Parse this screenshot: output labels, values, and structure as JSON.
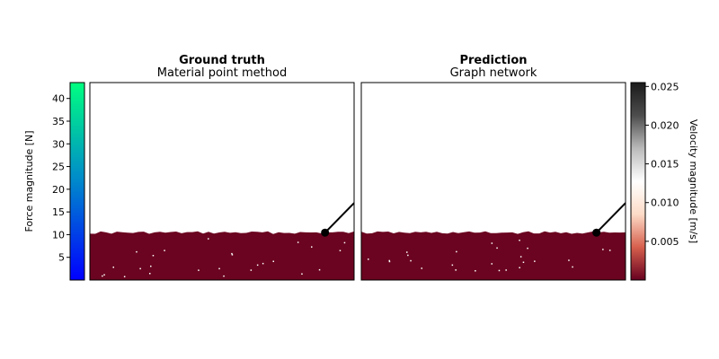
{
  "chart_data": [
    {
      "type": "scatter",
      "title": "Ground truth",
      "subtitle": "Material point method",
      "material_color": "#6b0420",
      "material_surface_level": 0.24,
      "probe": {
        "x": 0.89,
        "y": 0.24,
        "color": "#000000"
      },
      "rod": {
        "x1": 0.89,
        "y1": 0.24,
        "x2": 1.0,
        "y2": 0.39
      }
    },
    {
      "type": "scatter",
      "title": "Prediction",
      "subtitle": "Graph network",
      "material_color": "#6b0420",
      "material_surface_level": 0.24,
      "probe": {
        "x": 0.89,
        "y": 0.24,
        "color": "#000000"
      },
      "rod": {
        "x1": 0.89,
        "y1": 0.24,
        "x2": 1.0,
        "y2": 0.39
      }
    }
  ],
  "colorbars": {
    "force": {
      "label": "Force magnitude [N]",
      "range": [
        0,
        43.5
      ],
      "ticks": [
        5,
        10,
        15,
        20,
        25,
        30,
        35,
        40
      ],
      "tick_labels": [
        "5",
        "10",
        "15",
        "20",
        "25",
        "30",
        "35",
        "40"
      ],
      "colors": [
        "#0000ff",
        "#0088cc",
        "#00ff80"
      ]
    },
    "velocity": {
      "label": "Velocity magnitude [m/s]",
      "range": [
        0,
        0.0255
      ],
      "ticks": [
        0.005,
        0.01,
        0.015,
        0.02,
        0.025
      ],
      "tick_labels": [
        "0.005",
        "0.010",
        "0.015",
        "0.020",
        "0.025"
      ],
      "colors": [
        "#67001f",
        "#d6604d",
        "#fddbc7",
        "#ffffff",
        "#bababa",
        "#4d4d4d",
        "#1a1a1a"
      ]
    }
  }
}
